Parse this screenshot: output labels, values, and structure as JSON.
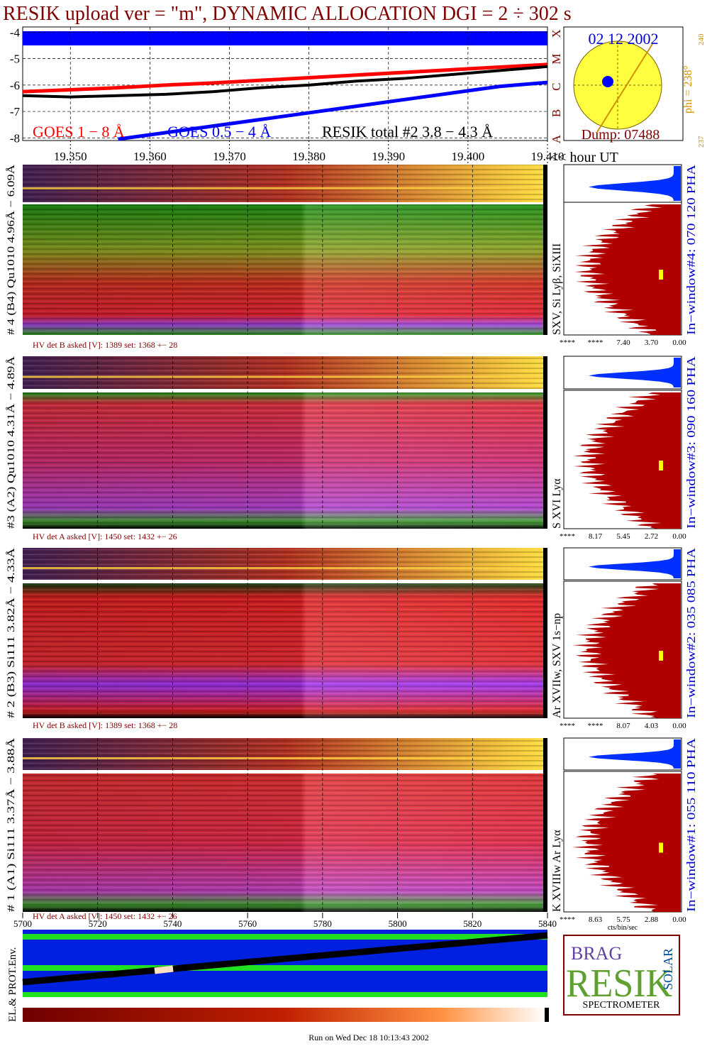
{
  "title": "RESIK upload ver = \"m\", DYNAMIC ALLOCATION  DGI =   2 ÷ 302 s",
  "chart_data": {
    "type": "line",
    "x": [
      19.344,
      19.35,
      19.356,
      19.362,
      19.368,
      19.374,
      19.38,
      19.386,
      19.392,
      19.398,
      19.404,
      19.41
    ],
    "series": [
      {
        "name": "GOES 1 − 8 Å",
        "color": "#ff0000",
        "values": [
          -6.25,
          -6.18,
          -6.1,
          -6.0,
          -5.92,
          -5.82,
          -5.72,
          -5.62,
          -5.52,
          -5.42,
          -5.32,
          -5.22
        ]
      },
      {
        "name": "GOES 0.5 − 4 Å",
        "color": "#0000ff",
        "values": [
          null,
          null,
          -8.05,
          -7.8,
          -7.55,
          -7.3,
          -7.05,
          -6.8,
          -6.55,
          -6.3,
          -6.05,
          -5.9
        ]
      },
      {
        "name": "RESIK total #2  3.8 − 4.3 Å",
        "color": "#000000",
        "values": [
          -6.4,
          -6.45,
          -6.4,
          -6.35,
          -6.25,
          -6.1,
          -6.0,
          -5.85,
          -5.75,
          -5.6,
          -5.45,
          -5.3
        ]
      }
    ],
    "xlim": [
      19.344,
      19.41
    ],
    "xticks": [
      {
        "value": 19.35,
        "label": "19.350"
      },
      {
        "value": 19.36,
        "label": "19.360"
      },
      {
        "value": 19.37,
        "label": "19.370"
      },
      {
        "value": 19.38,
        "label": "19.380"
      },
      {
        "value": 19.39,
        "label": "19.390"
      },
      {
        "value": 19.4,
        "label": "19.400"
      },
      {
        "value": 19.41,
        "label": "19.410"
      }
    ],
    "ylim": [
      -8.1,
      -3.8
    ],
    "yticks": [
      -4,
      -5,
      -6,
      -7,
      -8
    ],
    "x_label": "<< hour UT",
    "class_labels": [
      "X",
      "M",
      "C",
      "B",
      "A"
    ],
    "grid": true
  },
  "sun": {
    "date": "02 12 2002",
    "phi": "phi = 238°",
    "phi_max": "240",
    "phi_min": "237",
    "dump": "Dump: 07488"
  },
  "panels": [
    {
      "label": "# 4 (B4) Qu1010 4.96Å − 6.09Å",
      "lines": "SXV, Si Lyβ, SiXIII",
      "window": "In−window#4:  070 120 PHA",
      "hv": "HV det B asked [V]:  1389 set:  1368 +−   28",
      "pha": [
        "****",
        "****",
        "7.40",
        "3.70",
        "0.00"
      ]
    },
    {
      "label": "#3 (A2) Qu1010  4.31Å − 4.89Å",
      "lines": "S XVI Lyα",
      "window": "In−window#3:  090 160 PHA",
      "hv": "HV det A asked [V]:  1450 set:  1432 +−   26",
      "pha": [
        "****",
        "8.17",
        "5.45",
        "2.72",
        "0.00"
      ]
    },
    {
      "label": "# 2 (B3) Si111  3.82Å − 4.33Å",
      "lines": "Ar XVIIw,  SXV 1s−np",
      "window": "In−window#2:  035 085 PHA",
      "hv": "HV det B asked [V]:  1389 set:  1368 +−   28",
      "pha": [
        "****",
        "****",
        "8.07",
        "4.03",
        "0.00"
      ]
    },
    {
      "label": "# 1 (A1) Si111  3.37Å − 3.88Å",
      "lines": "K XVIIIw  Ar Lyα",
      "window": "In−window#1:  055 110 PHA",
      "hv": "HV det A asked [V]:  1450 set:  1432 +−   26",
      "pha": [
        "****",
        "8.63",
        "5.75",
        "2.88",
        "0.00"
      ]
    }
  ],
  "bin_axis": {
    "lim": [
      5700,
      5840
    ],
    "ticks": [
      5700,
      5720,
      5740,
      5760,
      5780,
      5800,
      5820,
      5840
    ]
  },
  "pha_unit": "cts/bin/sec",
  "env_label": "EL.& PROT.Env.",
  "logo": {
    "top": "BRAG",
    "main": "RESIK",
    "side": "SOLAR",
    "bottom": "SPECTROMETER"
  },
  "footer": "Run on Wed Dec 18 10:13:43 2002"
}
